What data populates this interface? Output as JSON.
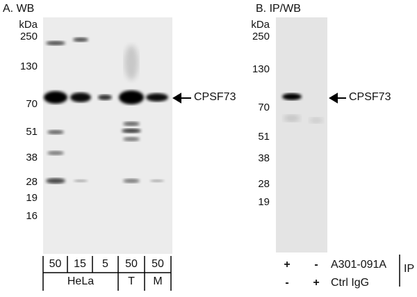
{
  "panel_a": {
    "title": "A. WB",
    "unit": "kDa",
    "markers": [
      "250",
      "130",
      "70",
      "51",
      "38",
      "28",
      "19",
      "16"
    ],
    "target_label": "CPSF73",
    "loads": [
      "50",
      "15",
      "5",
      "50",
      "50"
    ],
    "samples": [
      "HeLa",
      "T",
      "M"
    ]
  },
  "panel_b": {
    "title": "B. IP/WB",
    "unit": "kDa",
    "markers": [
      "250",
      "130",
      "70",
      "51",
      "38",
      "28",
      "19"
    ],
    "target_label": "CPSF73",
    "rows": [
      {
        "signs": [
          "+",
          "-"
        ],
        "label": "A301-091A"
      },
      {
        "signs": [
          "-",
          "+"
        ],
        "label": "Ctrl IgG"
      }
    ],
    "group_label": "IP"
  }
}
